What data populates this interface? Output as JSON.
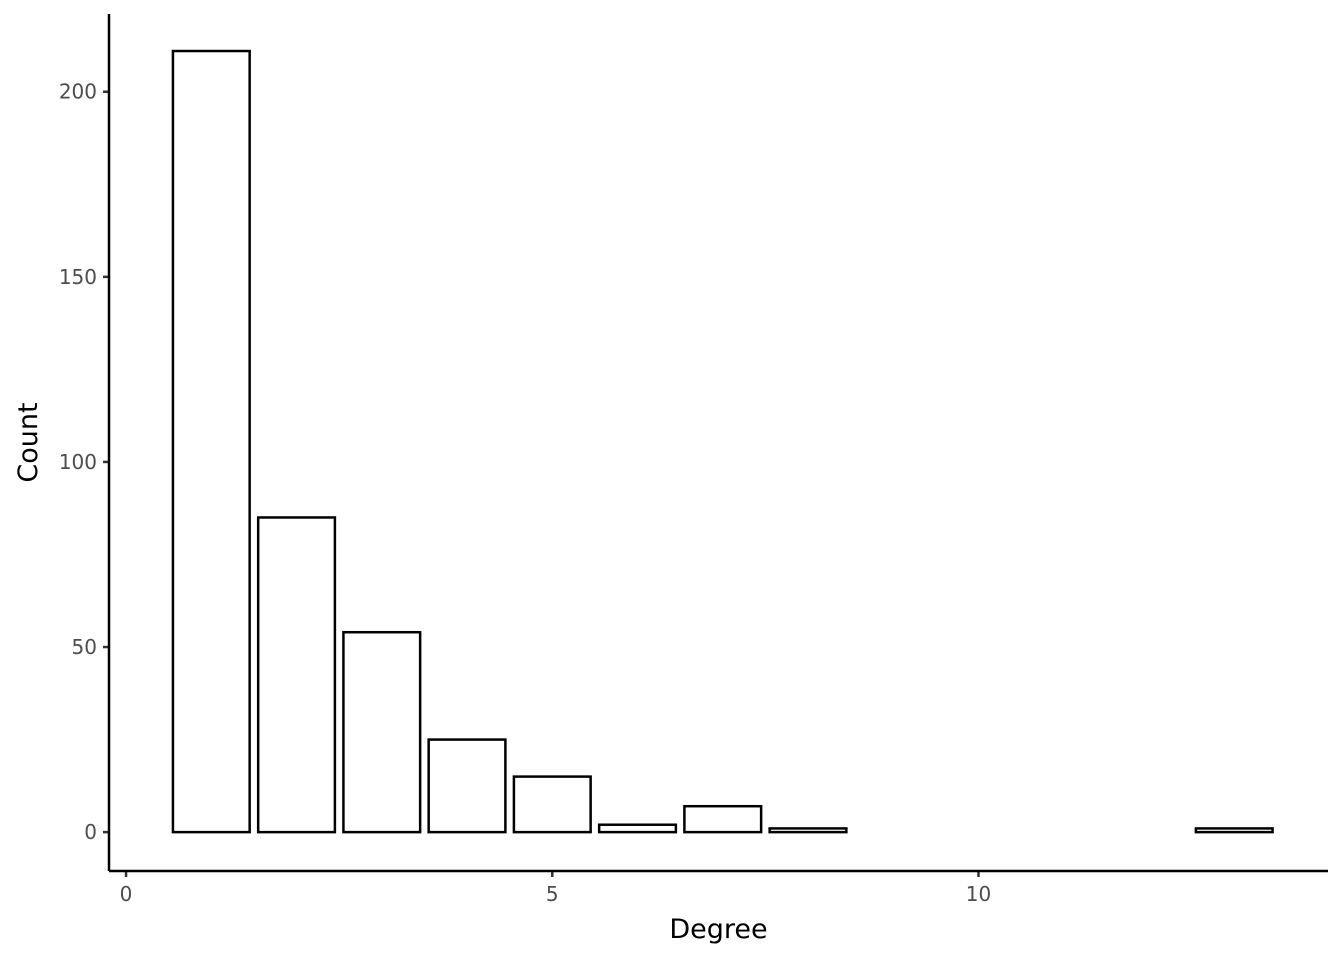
{
  "chart_data": {
    "type": "bar",
    "xlabel": "Degree",
    "ylabel": "Count",
    "x": [
      1,
      2,
      3,
      4,
      5,
      6,
      7,
      8,
      13
    ],
    "values": [
      211,
      85,
      54,
      25,
      15,
      2,
      7,
      1,
      1
    ],
    "bin_width": 1,
    "xlim": [
      -0.2,
      14.1
    ],
    "ylim": [
      -10.5,
      221
    ],
    "xticks": [
      0,
      5,
      10
    ],
    "yticks": [
      0,
      50,
      100,
      150,
      200
    ],
    "bar_fill": "#ffffff",
    "bar_stroke": "#000000",
    "grid": false,
    "legend": "none"
  }
}
